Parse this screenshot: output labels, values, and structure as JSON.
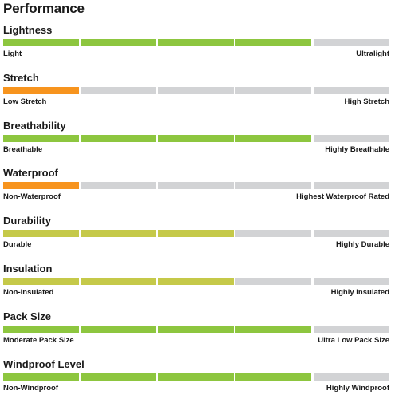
{
  "title": "Performance",
  "colors": {
    "green": "#8dc63f",
    "orange": "#f7941e",
    "olive": "#c5c949",
    "empty": "#d2d3d5"
  },
  "segments_total": 5,
  "metrics": [
    {
      "name": "Lightness",
      "low": "Light",
      "high": "Ultralight",
      "level": 4,
      "color": "green"
    },
    {
      "name": "Stretch",
      "low": "Low Stretch",
      "high": "High Stretch",
      "level": 1,
      "color": "orange"
    },
    {
      "name": "Breathability",
      "low": "Breathable",
      "high": "Highly Breathable",
      "level": 4,
      "color": "green"
    },
    {
      "name": "Waterproof",
      "low": "Non-Waterproof",
      "high": "Highest Waterproof Rated",
      "level": 1,
      "color": "orange"
    },
    {
      "name": "Durability",
      "low": "Durable",
      "high": "Highly Durable",
      "level": 3,
      "color": "olive"
    },
    {
      "name": "Insulation",
      "low": "Non-Insulated",
      "high": "Highly Insulated",
      "level": 3,
      "color": "olive"
    },
    {
      "name": "Pack Size",
      "low": "Moderate Pack Size",
      "high": "Ultra Low Pack Size",
      "level": 4,
      "color": "green"
    },
    {
      "name": "Windproof Level",
      "low": "Non-Windproof",
      "high": "Highly Windproof",
      "level": 4,
      "color": "green"
    }
  ]
}
